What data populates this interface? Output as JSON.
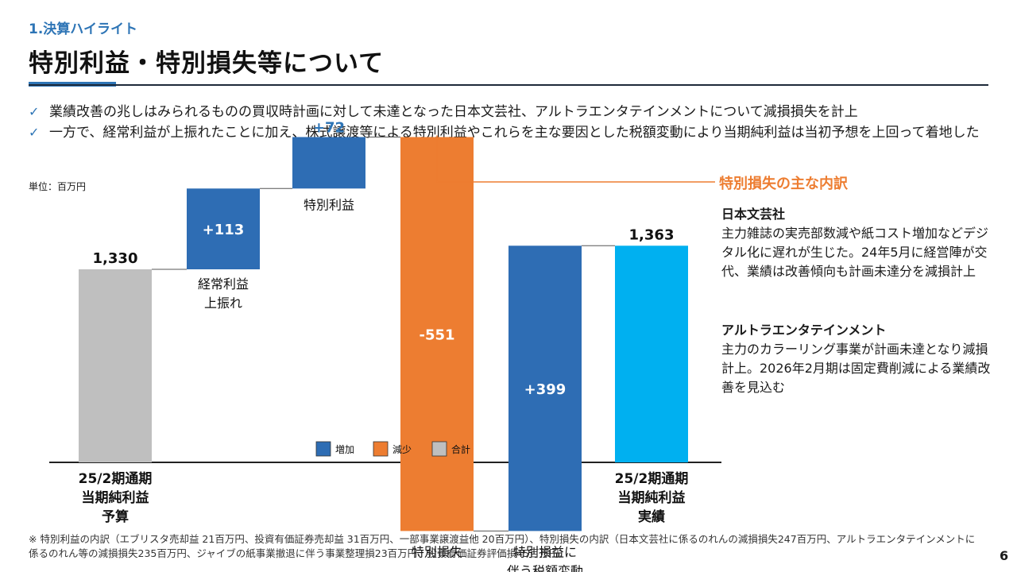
{
  "header": {
    "section": "1.決算ハイライト",
    "title": "特別利益・特別損失等について"
  },
  "bullets": [
    "業績改善の兆しはみられるものの買収時計画に対して未達となった日本文芸社、アルトラエンタテインメントについて減損損失を計上",
    "一方で、経常利益が上振れたことに加え、株式譲渡等による特別利益やこれらを主な要因とした税額変動により当期純利益は当初予想を上回って着地した"
  ],
  "chart_data": {
    "type": "waterfall",
    "unit_label": "単位：百万円",
    "ylim": [
      0,
      1450
    ],
    "steps": [
      {
        "kind": "total",
        "value": 1330,
        "label": "1,330",
        "category": "25/2期通期\n当期純利益\n予算",
        "color": "#bfbfbf"
      },
      {
        "kind": "increase",
        "value": 113,
        "label": "+113",
        "category": "経常利益\n上振れ",
        "color": "#2e6db4"
      },
      {
        "kind": "increase",
        "value": 72,
        "label": "+72",
        "category": "特別利益",
        "color": "#2e6db4"
      },
      {
        "kind": "decrease",
        "value": -551,
        "label": "-551",
        "category": "特別損失",
        "color": "#ed7d31"
      },
      {
        "kind": "increase",
        "value": 399,
        "label": "+399",
        "category": "特別損益に\n伴う税額変動",
        "color": "#2e6db4"
      },
      {
        "kind": "total",
        "value": 1363,
        "label": "1,363",
        "category": "25/2期通期\n当期純利益\n実績",
        "color": "#00b0f0"
      }
    ],
    "legend": [
      {
        "label": "増加",
        "color": "#2e6db4"
      },
      {
        "label": "減少",
        "color": "#ed7d31"
      },
      {
        "label": "合計",
        "color": "#bfbfbf"
      }
    ]
  },
  "side": {
    "title": "特別損失の主な内訳",
    "blocks": [
      {
        "head": "日本文芸社",
        "body": "主力雑誌の実売部数減や紙コスト増加などデジタル化に遅れが生じた。24年5月に経営陣が交代、業績は改善傾向も計画未達分を減損計上"
      },
      {
        "head": "アルトラエンタテインメント",
        "body": "主力のカラーリング事業が計画未達となり減損計上。2026年2月期は固定費削減による業績改善を見込む"
      }
    ]
  },
  "footnote": "※ 特別利益の内訳（エブリスタ売却益 21百万円、投資有価証券売却益 31百万円、一部事業譲渡益他 20百万円）、特別損失の内訳（日本文芸社に係るのれんの減損損失247百万円、アルトラエンタテインメントに係るのれん等の減損損失235百万円、ジャイブの紙事業撤退に伴う事業整理損23百万円、投資有価証券評価損45百万円）",
  "page_number": "6"
}
